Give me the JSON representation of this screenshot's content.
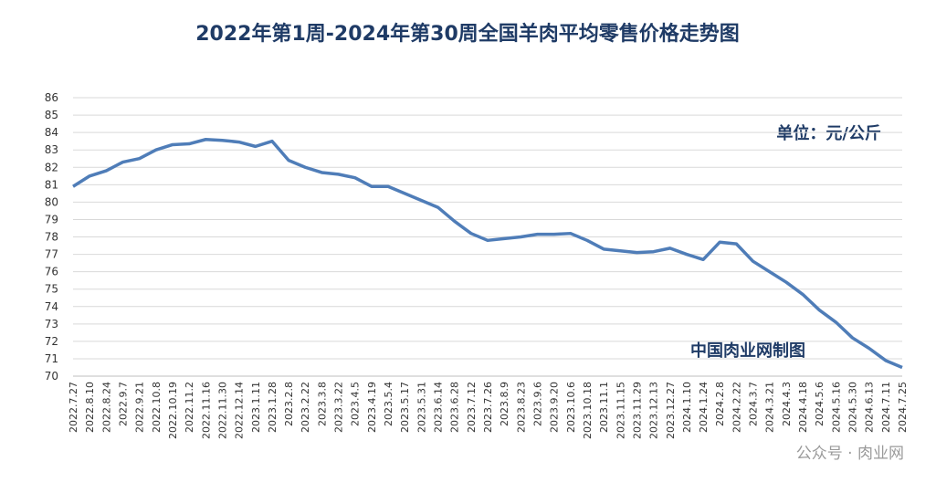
{
  "chart_data": {
    "type": "line",
    "title": "2022年第1周-2024年第30周全国羊肉平均零售价格走势图",
    "annotations": [
      "单位：元/公斤",
      "中国肉业网制图",
      "公众号 · 肉业网"
    ],
    "categories": [
      "2022.7.27",
      "2022.8.10",
      "2022.8.24",
      "2022.9.7",
      "2022.9.21",
      "2022.10.8",
      "2022.10.19",
      "2022.11.2",
      "2022.11.16",
      "2022.11.30",
      "2022.12.14",
      "2023.1.11",
      "2023.1.28",
      "2023.2.8",
      "2023.2.22",
      "2023.3.8",
      "2023.3.22",
      "2023.4.5",
      "2023.4.19",
      "2023.5.4",
      "2023.5.17",
      "2023.5.31",
      "2023.6.14",
      "2023.6.28",
      "2023.7.12",
      "2023.7.26",
      "2023.8.9",
      "2023.8.23",
      "2023.9.6",
      "2023.9.20",
      "2023.10.6",
      "2023.10.18",
      "2023.11.1",
      "2023.11.15",
      "2023.11.29",
      "2023.12.13",
      "2023.12.27",
      "2024.1.10",
      "2024.1.24",
      "2024.2.8",
      "2024.2.22",
      "2024.3.7",
      "2024.3.21",
      "2024.4.3",
      "2024.4.18",
      "2024.5.6",
      "2024.5.16",
      "2024.5.30",
      "2024.6.13",
      "2024.7.11",
      "2024.7.25"
    ],
    "series": [
      {
        "name": "全国羊肉平均零售价格",
        "color": "#4f7db8",
        "values": [
          80.9,
          81.5,
          81.8,
          82.3,
          82.5,
          83.0,
          83.3,
          83.35,
          83.6,
          83.55,
          83.45,
          83.2,
          83.5,
          82.4,
          82.0,
          81.7,
          81.6,
          81.4,
          80.9,
          80.9,
          80.5,
          80.1,
          79.7,
          78.9,
          78.2,
          77.8,
          77.9,
          78.0,
          78.15,
          78.15,
          78.2,
          77.8,
          77.3,
          77.2,
          77.1,
          77.15,
          77.35,
          77.0,
          76.7,
          77.7,
          77.6,
          76.6,
          76.0,
          75.4,
          74.7,
          73.8,
          73.1,
          72.2,
          71.6,
          70.9,
          70.5
        ]
      }
    ],
    "ylim": [
      70,
      86
    ],
    "yticks": [
      70,
      71,
      72,
      73,
      74,
      75,
      76,
      77,
      78,
      79,
      80,
      81,
      82,
      83,
      84,
      85,
      86
    ],
    "grid": true
  }
}
